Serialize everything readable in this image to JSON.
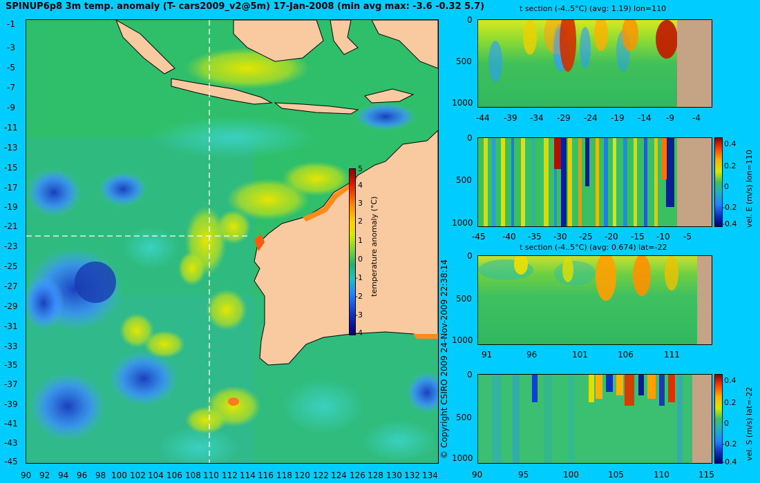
{
  "title": "SPINUP6p8 3m temp. anomaly (T- cars2009_v2@5m) 17-Jan-2008 (min avg max: -3.6 -0.32 5.7)",
  "map": {
    "lat_ticks": [
      "-1",
      "-3",
      "-5",
      "-7",
      "-9",
      "-11",
      "-13",
      "-15",
      "-17",
      "-19",
      "-21",
      "-23",
      "-25",
      "-27",
      "-29",
      "-31",
      "-33",
      "-35",
      "-37",
      "-39",
      "-41",
      "-43",
      "-45"
    ],
    "lon_ticks": [
      "90",
      "92",
      "94",
      "96",
      "98",
      "100",
      "102",
      "104",
      "106",
      "108",
      "110",
      "112",
      "114",
      "116",
      "118",
      "120",
      "122",
      "124",
      "126",
      "128",
      "130",
      "132",
      "134"
    ],
    "section_lon": 110,
    "section_lat": -22,
    "colorbar": {
      "ticks": [
        "5",
        "4",
        "3",
        "2",
        "1",
        "0",
        "-1",
        "-2",
        "-3",
        "-4"
      ],
      "label": "temperature anomaly (°C)"
    }
  },
  "copyright": "© Copyright CSIRO 2009  24-Nov-2009 22:38:14",
  "panels": {
    "p1": {
      "title": "t section (-4..5°C) (avg: 1.19) lon=110",
      "y_ticks": [
        "0",
        "500",
        "1000"
      ],
      "x_ticks": [
        "-44",
        "-39",
        "-34",
        "-29",
        "-24",
        "-19",
        "-14",
        "-9",
        "-4"
      ]
    },
    "p2": {
      "x_ticks": [
        "-45",
        "-40",
        "-35",
        "-30",
        "-25",
        "-20",
        "-15",
        "-10",
        "-5"
      ],
      "y_ticks": [
        "0",
        "500",
        "1000"
      ],
      "colorbar_ticks": [
        "0.4",
        "0.2",
        "0",
        "-0.2",
        "-0.4"
      ],
      "colorbar_label": "vel. E (m/s) lon=110"
    },
    "p3": {
      "title": "t section (-4..5°C) (avg: 0.674) lat=-22",
      "y_ticks": [
        "0",
        "500",
        "1000"
      ],
      "x_ticks": [
        "91",
        "96",
        "101",
        "106",
        "111"
      ]
    },
    "p4": {
      "x_ticks": [
        "90",
        "95",
        "100",
        "105",
        "110",
        "115"
      ],
      "y_ticks": [
        "0",
        "500",
        "1000"
      ],
      "colorbar_ticks": [
        "0.4",
        "0.2",
        "0",
        "-0.2",
        "-0.4"
      ],
      "colorbar_label": "vel. S (m/s) lat=-22"
    }
  },
  "colors": {
    "land": "#f9c9a0",
    "section_land": "#c4a484",
    "background": "#00ccff"
  }
}
